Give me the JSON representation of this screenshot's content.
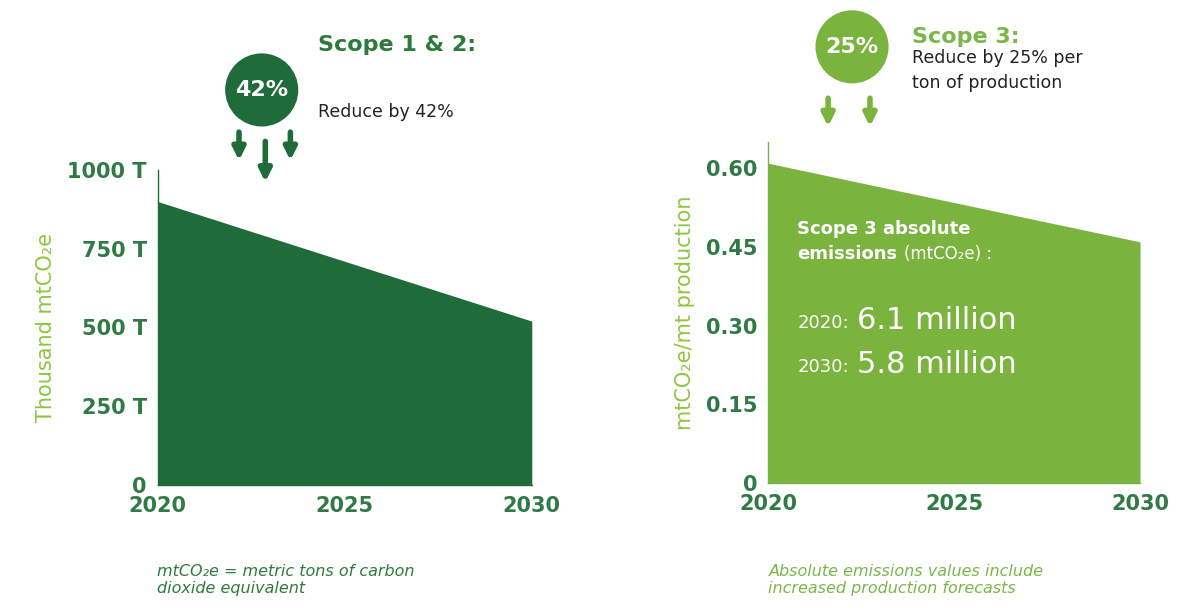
{
  "chart_data": [
    {
      "type": "area",
      "badge": "42%",
      "title": "Scope 1 & 2:",
      "subtitle": "Reduce by 42%",
      "x": [
        2020,
        2030
      ],
      "values": [
        900,
        520
      ],
      "color": "#1f6b3a",
      "xlim": [
        2020,
        2030
      ],
      "xticks": [
        2020,
        2025,
        2030
      ],
      "ylim": [
        0,
        1000
      ],
      "yticks": [
        0,
        {
          "value": 250,
          "label": "250 T"
        },
        {
          "value": 500,
          "label": "500 T"
        },
        {
          "value": 750,
          "label": "750 T"
        },
        {
          "value": 1000,
          "label": "1000 T"
        }
      ],
      "y_label": "Thousand mtCO₂e",
      "note": "mtCO₂e = metric tons of carbon dioxide equivalent",
      "grid": false
    },
    {
      "type": "area",
      "badge": "25%",
      "title": "Scope 3:",
      "subtitle": "Reduce by 25% per ton of production",
      "x": [
        2020,
        2030
      ],
      "values": [
        0.61,
        0.46
      ],
      "color": "#7ab33e",
      "xlim": [
        2020,
        2030
      ],
      "xticks": [
        2020,
        2025,
        2030
      ],
      "ylim": [
        0,
        0.65
      ],
      "yticks": [
        0,
        0.15,
        {
          "value": 0.3,
          "label": "0.30"
        },
        0.45,
        {
          "value": 0.6,
          "label": "0.60"
        }
      ],
      "y_label": "mtCO₂e/mt production",
      "annotation": {
        "heading": [
          "Scope 3 absolute",
          "emissions"
        ],
        "unit": "(mtCO₂e) :",
        "lines": [
          {
            "label": "2020:",
            "value": "6.1 million"
          },
          {
            "label": "2030:",
            "value": "5.8 million"
          }
        ]
      },
      "note": "Absolute emissions values include increased production forecasts",
      "grid": false
    }
  ]
}
